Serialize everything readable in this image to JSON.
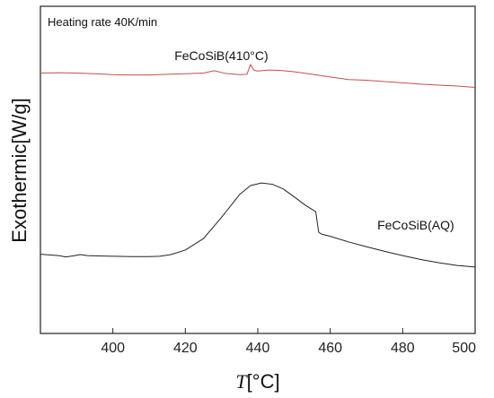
{
  "chart_data": {
    "type": "line",
    "annotation": "Heating rate 40K/min",
    "xlabel_italic": "T",
    "xlabel_unit": "[°C]",
    "ylabel": "Exothermic[W/g]",
    "xlim": [
      380,
      500
    ],
    "ylim": [
      0,
      100
    ],
    "x_ticks": [
      400,
      420,
      440,
      460,
      480,
      500
    ],
    "grid": false,
    "series": [
      {
        "name": "FeCoSiB(410°C)",
        "color": "#c0504d",
        "x": [
          380,
          385,
          390,
          395,
          400,
          405,
          410,
          415,
          420,
          425,
          428,
          431,
          435,
          437,
          438,
          439,
          440,
          443,
          446,
          450,
          455,
          460,
          465,
          470,
          475,
          480,
          485,
          490,
          495,
          500
        ],
        "y": [
          79.6,
          79.7,
          79.6,
          79.4,
          79.1,
          79.0,
          79.0,
          79.2,
          79.4,
          79.6,
          80.3,
          79.5,
          79.1,
          79.2,
          82.2,
          80.4,
          80.2,
          80.5,
          80.4,
          80.0,
          79.2,
          78.4,
          77.6,
          77.4,
          77.0,
          76.6,
          76.2,
          75.9,
          75.6,
          75.2
        ]
      },
      {
        "name": "FeCoSiB(AQ)",
        "color": "#222222",
        "x": [
          380,
          385,
          387,
          389,
          391,
          393,
          396,
          400,
          405,
          410,
          413,
          416,
          420,
          425,
          430,
          435,
          438,
          441,
          444,
          447,
          450,
          453,
          456,
          456.8,
          457.5,
          460,
          465,
          470,
          475,
          480,
          485,
          490,
          495,
          500
        ],
        "y": [
          24.2,
          23.8,
          23.4,
          23.7,
          24.1,
          23.8,
          23.7,
          23.6,
          23.5,
          23.5,
          23.6,
          24.1,
          25.5,
          29.0,
          35.5,
          42.5,
          45.2,
          46.0,
          45.6,
          44.2,
          41.8,
          39.3,
          37.2,
          31.0,
          30.4,
          29.7,
          28.0,
          26.5,
          25.1,
          23.8,
          22.6,
          21.6,
          20.8,
          20.3
        ]
      }
    ],
    "series_label_anchor_x": [
      417,
      473
    ],
    "series_label_anchor_y": [
      83.6,
      31.8
    ]
  }
}
